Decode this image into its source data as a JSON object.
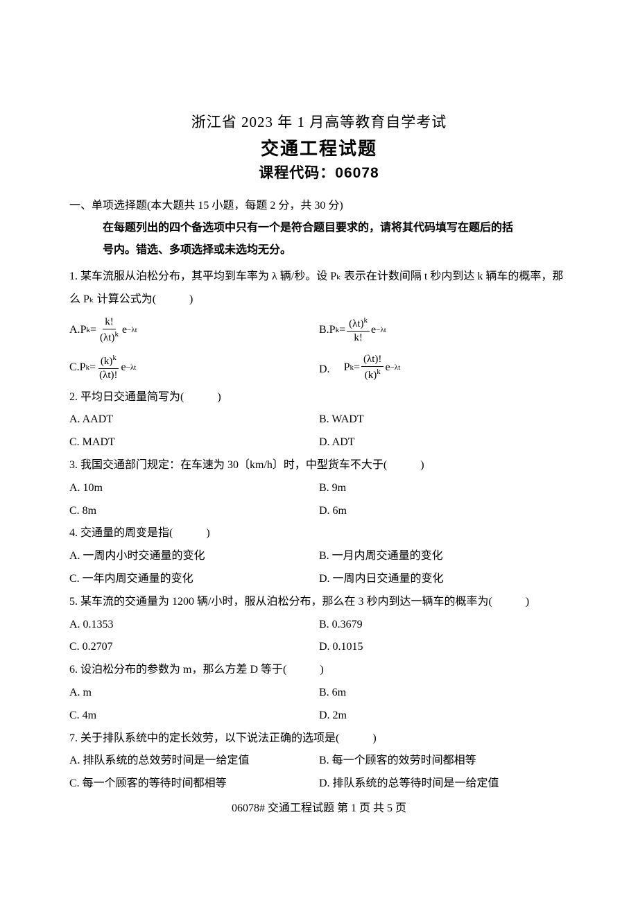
{
  "header": {
    "line1": "浙江省 2023 年 1 月高等教育自学考试",
    "line2": "交通工程试题",
    "line3": "课程代码：06078"
  },
  "section1": {
    "head_prefix": "一、单项选择题(本大题共 15 小题，每题 2 分，共 30 分)",
    "instr1": "在每题列出的四个备选项中只有一个是符合题目要求的，请将其代码填写在题后的括",
    "instr2": "号内。错选、多项选择或未选均无分。"
  },
  "q1": {
    "text": "1. 某车流服从泊松分布，其平均到车率为 λ 辆/秒。设 Pₖ 表示在计数间隔 t 秒内到达 k 辆车的概率，那么 Pₖ 计算公式为(　　　)",
    "a_label": "A. ",
    "b_label": "B. ",
    "c_label": "C. ",
    "d_label": "D. 　",
    "formula": {
      "prefix": "P",
      "sub_k": "k",
      "eq": " = ",
      "a_num": "k!",
      "a_den_base": "(λt)",
      "a_den_exp": "k",
      "b_num_base": "(λt)",
      "b_num_exp": "k",
      "b_den": "k!",
      "c_num_base": "(k)",
      "c_num_exp": "k",
      "c_den": "(λt)!",
      "d_num": "(λt)!",
      "d_den_base": "(k)",
      "d_den_exp": "k",
      "e_base": "e",
      "e_exp": "−λt"
    }
  },
  "q2": {
    "text": "2. 平均日交通量简写为(　　　)",
    "a": "A. AADT",
    "b": "B. WADT",
    "c": "C. MADT",
    "d": "D. ADT"
  },
  "q3": {
    "text": "3. 我国交通部门规定：在车速为 30〔km/h〕时，中型货车不大于(　　　)",
    "a": "A. 10m",
    "b": "B. 9m",
    "c": "C. 8m",
    "d": "D. 6m"
  },
  "q4": {
    "text": "4. 交通量的周变是指(　　　)",
    "a": "A. 一周内小时交通量的变化",
    "b": "B. 一月内周交通量的变化",
    "c": "C. 一年内周交通量的变化",
    "d": "D. 一周内日交通量的变化"
  },
  "q5": {
    "text": "5. 某车流的交通量为 1200 辆/小时，服从泊松分布，那么在 3 秒内到达一辆车的概率为(　　　)",
    "a": "A. 0.1353",
    "b": "B. 0.3679",
    "c": "C. 0.2707",
    "d": "D. 0.1015"
  },
  "q6": {
    "text": "6. 设泊松分布的参数为 m，那么方差 D 等于(　　　)",
    "a": "A. m",
    "b": "B. 6m",
    "c": "C. 4m",
    "d": "D. 2m"
  },
  "q7": {
    "text": "7. 关于排队系统中的定长效劳，以下说法正确的选项是(　　　)",
    "a": "A. 排队系统的总效劳时间是一给定值",
    "b": "B. 每一个顾客的效劳时间都相等",
    "c": "C. 每一个顾客的等待时间都相等",
    "d": "D. 排队系统的总等待时间是一给定值"
  },
  "footer": "06078# 交通工程试题  第 1 页 共 5 页"
}
